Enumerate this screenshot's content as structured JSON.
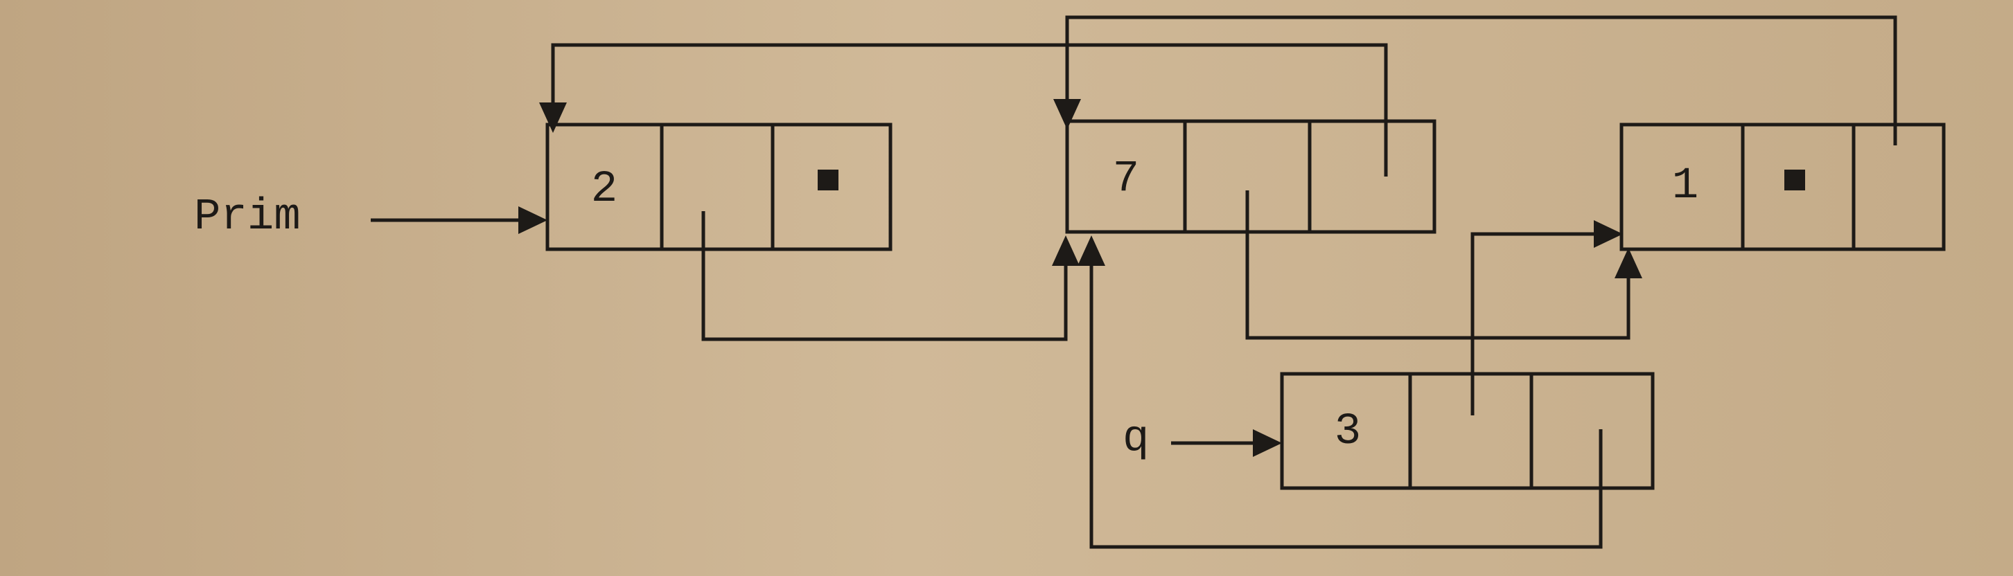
{
  "labels": {
    "prim": "Prim",
    "q": "q"
  },
  "nodes": [
    {
      "id": "node-2",
      "value": "2",
      "next_null": true
    },
    {
      "id": "node-7",
      "value": "7",
      "next_null": false
    },
    {
      "id": "node-1",
      "value": "1",
      "next_null": true
    },
    {
      "id": "node-3",
      "value": "3",
      "next_null": false
    }
  ],
  "colors": {
    "ink": "#1d1a17",
    "paper": "#c9b393"
  }
}
